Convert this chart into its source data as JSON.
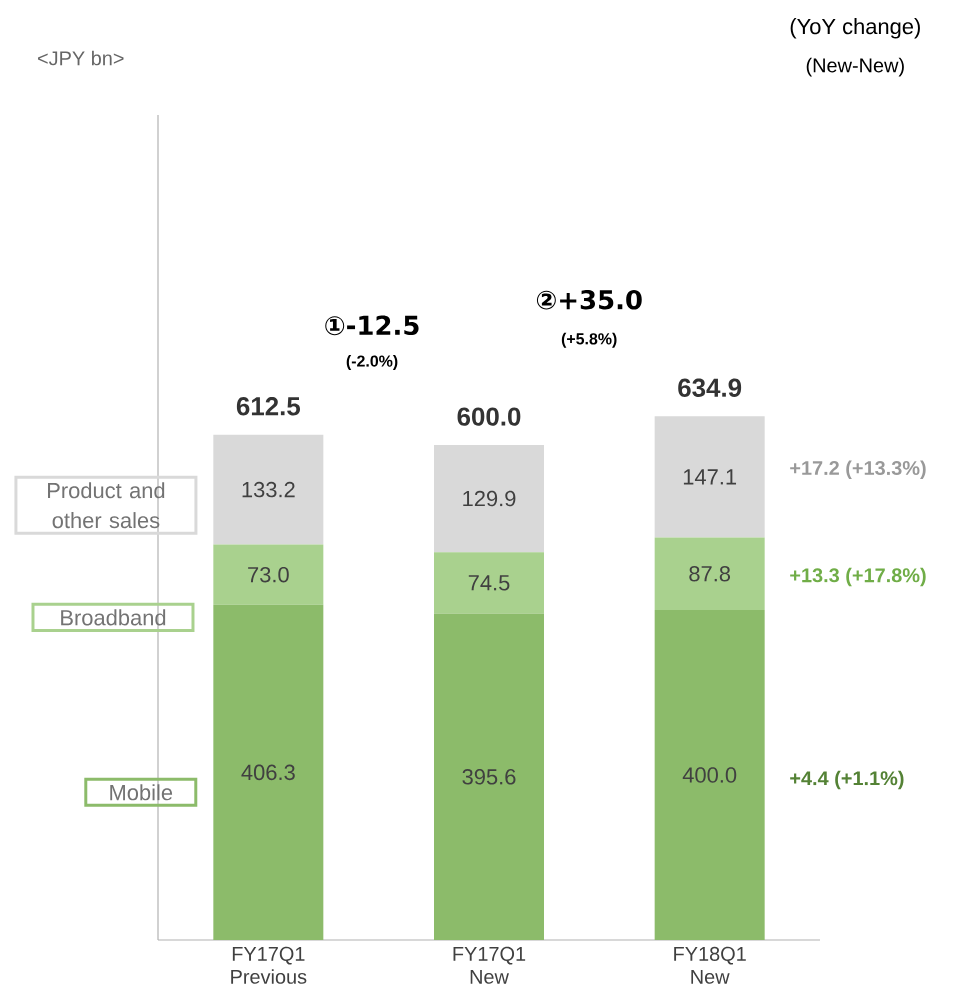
{
  "chart_data": {
    "type": "bar",
    "stacked": true,
    "categories": [
      "FY17Q1 Previous",
      "FY17Q1 New",
      "FY18Q1 New"
    ],
    "series": [
      {
        "name": "Mobile",
        "color": "#8cbb6a",
        "values": [
          406.3,
          395.6,
          400.0
        ],
        "value_labels": [
          "406.3",
          "395.6",
          "400.0"
        ]
      },
      {
        "name": "Broadband",
        "color": "#a9d18e",
        "values": [
          73.0,
          74.5,
          87.8
        ],
        "value_labels": [
          "73.0",
          "74.5",
          "87.8"
        ]
      },
      {
        "name": "Product and other sales",
        "color": "#d9d9d9",
        "values": [
          133.2,
          129.9,
          147.1
        ],
        "value_labels": [
          "133.2",
          "129.9",
          "147.1"
        ]
      }
    ],
    "totals": [
      "612.5",
      "600.0",
      "634.9"
    ],
    "annotations": [
      "<JPY bn>",
      "(YoY change)",
      "(New-New)",
      "①-12.5",
      "(-2.0%)",
      "②+35.0",
      "(+5.8%)",
      "+4.4 (+1.1%)",
      "+13.3 (+17.8%)",
      "+17.2 (+13.3%)"
    ]
  }
}
